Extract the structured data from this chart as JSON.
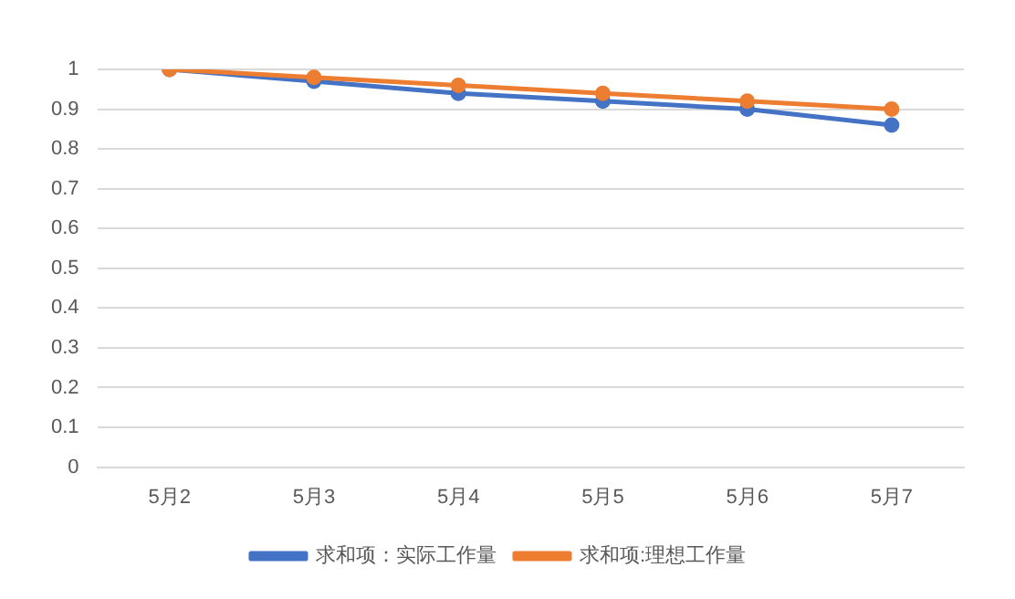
{
  "chart_data": {
    "type": "line",
    "categories": [
      "5月2",
      "5月3",
      "5月4",
      "5月5",
      "5月6",
      "5月7"
    ],
    "series": [
      {
        "name": "求和项：实际工作量",
        "color": "#4472c4",
        "values": [
          1,
          0.97,
          0.94,
          0.92,
          0.9,
          0.86
        ]
      },
      {
        "name": "求和项:理想工作量",
        "color": "#ed7d31",
        "values": [
          1,
          0.98,
          0.96,
          0.94,
          0.92,
          0.9
        ]
      }
    ],
    "ylim": [
      0,
      1
    ],
    "yticks": [
      0,
      0.1,
      0.2,
      0.3,
      0.4,
      0.5,
      0.6,
      0.7,
      0.8,
      0.9,
      1
    ],
    "grid": "y",
    "legend": "bottom",
    "marker": "circle"
  }
}
